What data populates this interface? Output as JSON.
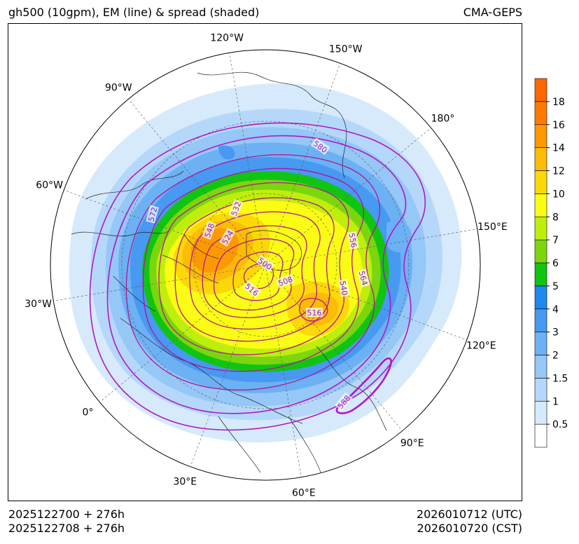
{
  "title_left": "gh500 (10gpm), EM (line) & spread (shaded)",
  "title_right": "CMA-GEPS",
  "footer": {
    "init_utc": "2025122700 + 276h",
    "init_cst": "2025122708 + 276h",
    "valid_utc": "2026010712 (UTC)",
    "valid_cst": "2026010720 (CST)"
  },
  "longitude_labels": [
    {
      "text": "60°W",
      "lon": -60
    },
    {
      "text": "90°W",
      "lon": -90
    },
    {
      "text": "30°W",
      "lon": -30
    },
    {
      "text": "120°W",
      "lon": -120
    },
    {
      "text": "0°",
      "lon": 0
    },
    {
      "text": "150°W",
      "lon": -150
    },
    {
      "text": "30°E",
      "lon": 30
    },
    {
      "text": "180°",
      "lon": 180
    },
    {
      "text": "60°E",
      "lon": 60
    },
    {
      "text": "150°E",
      "lon": 150
    },
    {
      "text": "90°E",
      "lon": 90
    },
    {
      "text": "120°E",
      "lon": 120
    }
  ],
  "contour_labels": [
    "580",
    "572",
    "548",
    "532",
    "524",
    "556",
    "500",
    "564",
    "508",
    "540",
    "516",
    "516",
    "588"
  ],
  "colorbar": {
    "levels": [
      "0.5",
      "1",
      "1.5",
      "2",
      "3",
      "4",
      "5",
      "6",
      "7",
      "8",
      "10",
      "12",
      "14",
      "16",
      "18"
    ],
    "colors": [
      "#ffffff",
      "#d6eafb",
      "#b5d8fa",
      "#95c7f7",
      "#6cb1f4",
      "#4799f2",
      "#1e88ee",
      "#11c412",
      "#7bd60d",
      "#c0ee0c",
      "#fbfc14",
      "#fcd808",
      "#fcbb06",
      "#fc9902",
      "#fd7a01",
      "#fe6603"
    ]
  },
  "colors": {
    "contour": "#b1168f",
    "contour_special": "#b216c8",
    "label_text": "#8e1cc6"
  }
}
